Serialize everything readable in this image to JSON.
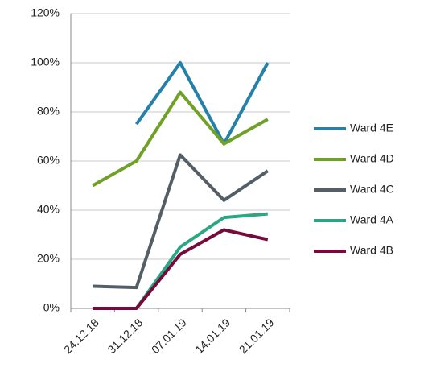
{
  "chart_data": {
    "type": "line",
    "categories": [
      "24.12.18",
      "31.12.18",
      "07.01.19",
      "14.01.19",
      "21.01.19"
    ],
    "series": [
      {
        "name": "Ward 4E",
        "color": "#2581a8",
        "values": [
          null,
          75,
          100,
          67,
          100
        ]
      },
      {
        "name": "Ward 4D",
        "color": "#6fa126",
        "values": [
          50,
          60,
          88,
          67,
          77
        ]
      },
      {
        "name": "Ward 4C",
        "color": "#545e66",
        "values": [
          9,
          8.5,
          62.5,
          44,
          56
        ]
      },
      {
        "name": "Ward 4A",
        "color": "#2aa883",
        "values": [
          0,
          0,
          25,
          37,
          38.5
        ]
      },
      {
        "name": "Ward 4B",
        "color": "#760a3c",
        "values": [
          0,
          0,
          22,
          32,
          28
        ]
      }
    ],
    "ylim": [
      0,
      120
    ],
    "yticks": [
      {
        "value": 0,
        "label": "0%"
      },
      {
        "value": 20,
        "label": "20%"
      },
      {
        "value": 40,
        "label": "40%"
      },
      {
        "value": 60,
        "label": "60%"
      },
      {
        "value": 80,
        "label": "80%"
      },
      {
        "value": 100,
        "label": "100%"
      },
      {
        "value": 120,
        "label": "120%"
      }
    ],
    "grid": true,
    "legend": "right"
  }
}
